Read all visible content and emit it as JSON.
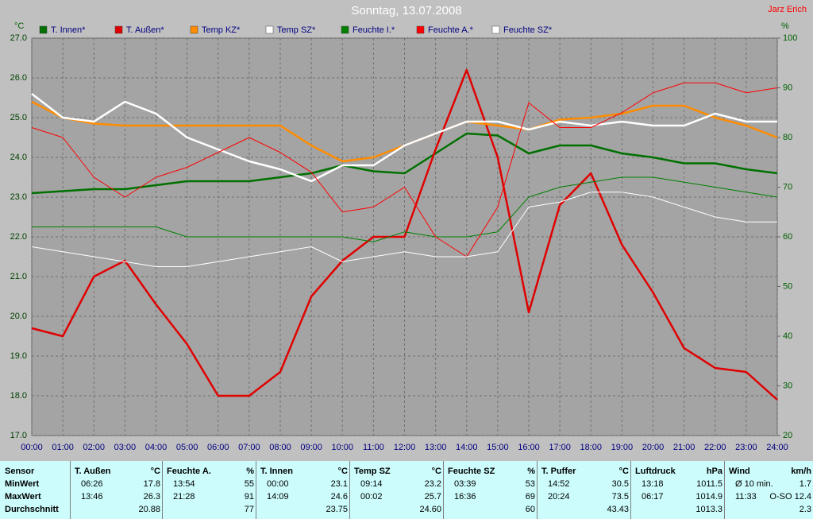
{
  "chart_data": {
    "type": "line",
    "title": "Sonntag, 13.07.2008",
    "annotation": "Jarz Erich",
    "ylabel": "°C",
    "y2label": "%",
    "x": [
      0,
      1,
      2,
      3,
      4,
      5,
      6,
      7,
      8,
      9,
      10,
      11,
      12,
      13,
      14,
      15,
      16,
      17,
      18,
      19,
      20,
      21,
      22,
      23,
      24
    ],
    "xlim": [
      0,
      24
    ],
    "xticks": [
      {
        "value": 0,
        "label": "00:00"
      },
      {
        "value": 1,
        "label": "01:00"
      },
      {
        "value": 2,
        "label": "02:00"
      },
      {
        "value": 3,
        "label": "03:00"
      },
      {
        "value": 4,
        "label": "04:00"
      },
      {
        "value": 5,
        "label": "05:00"
      },
      {
        "value": 6,
        "label": "06:00"
      },
      {
        "value": 7,
        "label": "07:00"
      },
      {
        "value": 8,
        "label": "08:00"
      },
      {
        "value": 9,
        "label": "09:00"
      },
      {
        "value": 10,
        "label": "10:00"
      },
      {
        "value": 11,
        "label": "11:00"
      },
      {
        "value": 12,
        "label": "12:00"
      },
      {
        "value": 13,
        "label": "13:00"
      },
      {
        "value": 14,
        "label": "14:00"
      },
      {
        "value": 15,
        "label": "15:00"
      },
      {
        "value": 16,
        "label": "16:00"
      },
      {
        "value": 17,
        "label": "17:00"
      },
      {
        "value": 18,
        "label": "18:00"
      },
      {
        "value": 19,
        "label": "19:00"
      },
      {
        "value": 20,
        "label": "20:00"
      },
      {
        "value": 21,
        "label": "21:00"
      },
      {
        "value": 22,
        "label": "22:00"
      },
      {
        "value": 23,
        "label": "23:00"
      },
      {
        "value": 24,
        "label": "24:00"
      }
    ],
    "ylim": [
      17,
      27
    ],
    "yticks": [
      {
        "value": 17,
        "label": "17.0"
      },
      {
        "value": 18,
        "label": "18.0"
      },
      {
        "value": 19,
        "label": "19.0"
      },
      {
        "value": 20,
        "label": "20.0"
      },
      {
        "value": 21,
        "label": "21.0"
      },
      {
        "value": 22,
        "label": "22.0"
      },
      {
        "value": 23,
        "label": "23.0"
      },
      {
        "value": 24,
        "label": "24.0"
      },
      {
        "value": 25,
        "label": "25.0"
      },
      {
        "value": 26,
        "label": "26.0"
      },
      {
        "value": 27,
        "label": "27.0"
      }
    ],
    "y2lim": [
      20,
      100
    ],
    "y2ticks": [
      20,
      30,
      40,
      50,
      60,
      70,
      80,
      90,
      100
    ],
    "grid": true,
    "series": [
      {
        "name": "T. Innen*",
        "color": "#007000",
        "values": [
          23.1,
          23.15,
          23.2,
          23.2,
          23.3,
          23.4,
          23.4,
          23.4,
          23.5,
          23.6,
          23.8,
          23.65,
          23.6,
          24.1,
          24.6,
          24.55,
          24.1,
          24.3,
          24.3,
          24.1,
          24.0,
          23.85,
          23.85,
          23.7,
          23.6
        ]
      },
      {
        "name": "T. Außen*",
        "color": "#e00000",
        "values": [
          19.7,
          19.5,
          21.0,
          21.4,
          20.3,
          19.3,
          18.0,
          18.0,
          18.6,
          20.5,
          21.4,
          22.0,
          22.0,
          24.2,
          26.2,
          24.0,
          20.1,
          22.8,
          23.6,
          21.8,
          20.6,
          19.2,
          18.7,
          18.6,
          17.9
        ]
      },
      {
        "name": "Temp KZ*",
        "color": "#ff8c00",
        "values": [
          25.4,
          25.0,
          24.85,
          24.8,
          24.8,
          24.8,
          24.8,
          24.8,
          24.8,
          24.3,
          23.9,
          24.0,
          24.3,
          24.6,
          24.9,
          24.8,
          24.7,
          24.95,
          25.0,
          25.1,
          25.3,
          25.3,
          25.0,
          24.8,
          24.5
        ]
      },
      {
        "name": "Temp SZ*",
        "color": "#ffffff",
        "values": [
          25.6,
          25.0,
          24.9,
          25.4,
          25.1,
          24.5,
          24.2,
          23.9,
          23.7,
          23.4,
          23.8,
          23.8,
          24.3,
          24.6,
          24.9,
          24.9,
          24.7,
          24.9,
          24.8,
          24.9,
          24.8,
          24.8,
          25.1,
          24.9,
          24.9
        ]
      },
      {
        "name": "Feuchte I.*",
        "color": "#008000",
        "axis": "y2",
        "values": [
          62,
          62,
          62,
          62,
          62,
          60,
          60,
          60,
          60,
          60,
          60,
          59,
          61,
          60,
          60,
          61,
          68,
          70,
          71,
          72,
          72,
          71,
          70,
          69,
          68
        ]
      },
      {
        "name": "Feuchte A.*",
        "color": "#ff0000",
        "axis": "y2",
        "values": [
          82,
          80,
          72,
          68,
          72,
          74,
          77,
          80,
          77,
          73,
          65,
          66,
          70,
          60,
          56,
          66,
          87,
          82,
          82,
          85,
          89,
          91,
          91,
          89,
          90
        ]
      },
      {
        "name": "Feuchte SZ*",
        "color": "#ffffff",
        "axis": "y2",
        "values": [
          58,
          57,
          56,
          55,
          54,
          54,
          55,
          56,
          57,
          58,
          55,
          56,
          57,
          56,
          56,
          57,
          66,
          67,
          69,
          69,
          68,
          66,
          64,
          63,
          63
        ]
      }
    ]
  },
  "table": {
    "row_labels": [
      "MinWert",
      "MaxWert",
      "Durchschnitt"
    ],
    "corner": "Sensor",
    "columns": [
      {
        "name": "T. Außen",
        "unit": "°C",
        "rows": [
          [
            "06:26",
            "17.8"
          ],
          [
            "13:46",
            "26.3"
          ],
          [
            "20.88"
          ]
        ]
      },
      {
        "name": "Feuchte A.",
        "unit": "%",
        "rows": [
          [
            "13:54",
            "55"
          ],
          [
            "21:28",
            "91"
          ],
          [
            "77"
          ]
        ]
      },
      {
        "name": "T. Innen",
        "unit": "°C",
        "rows": [
          [
            "00:00",
            "23.1"
          ],
          [
            "14:09",
            "24.6"
          ],
          [
            "23.75"
          ]
        ]
      },
      {
        "name": "Temp SZ",
        "unit": "°C",
        "rows": [
          [
            "09:14",
            "23.2"
          ],
          [
            "00:02",
            "25.7"
          ],
          [
            "24.60"
          ]
        ]
      },
      {
        "name": "Feuchte SZ",
        "unit": "%",
        "rows": [
          [
            "03:39",
            "53"
          ],
          [
            "16:36",
            "69"
          ],
          [
            "60"
          ]
        ]
      },
      {
        "name": "T. Puffer",
        "unit": "°C",
        "rows": [
          [
            "14:52",
            "30.5"
          ],
          [
            "20:24",
            "73.5"
          ],
          [
            "43.43"
          ]
        ]
      },
      {
        "name": "Luftdruck",
        "unit": "hPa",
        "rows": [
          [
            "13:18",
            "1011.5"
          ],
          [
            "06:17",
            "1014.9"
          ],
          [
            "1013.3"
          ]
        ]
      },
      {
        "name": "Wind",
        "unit": "km/h",
        "rows": [
          [
            "Ø 10 min.",
            "1.7"
          ],
          [
            "11:33",
            "O-SO 12.4"
          ],
          [
            "2.3"
          ]
        ]
      }
    ]
  }
}
